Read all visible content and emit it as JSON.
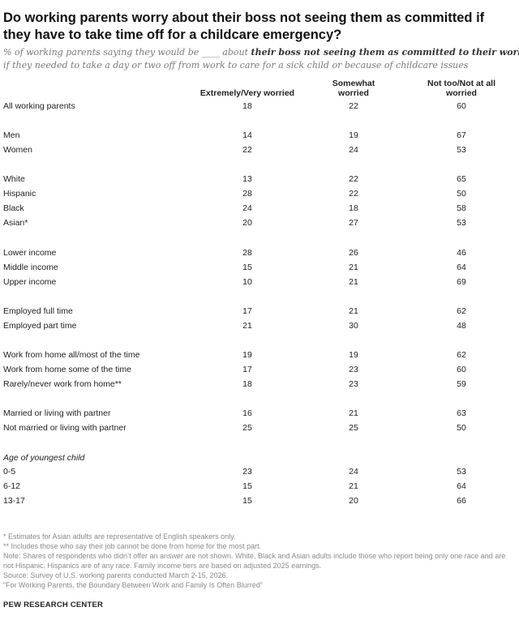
{
  "title": "Do working parents worry about their boss not seeing them as committed if they have to take time off for a childcare emergency?",
  "subtitle": {
    "prefix": "% of working parents saying they would be ____ about ",
    "bold": "their boss not seeing them as committed to their work",
    "suffix": "if they needed to take a day or two off from work to care for a sick child or because of childcare issues"
  },
  "columns": {
    "c1": "Extremely/Very worried",
    "c2": "Somewhat worried",
    "c3": "Not too/Not at all worried"
  },
  "rows": [
    {
      "label": "All working parents",
      "v1": "18",
      "v2": "22",
      "v3": "60"
    },
    {
      "label": "Men",
      "v1": "14",
      "v2": "19",
      "v3": "67"
    },
    {
      "label": "Women",
      "v1": "22",
      "v2": "24",
      "v3": "53"
    },
    {
      "label": "White",
      "v1": "13",
      "v2": "22",
      "v3": "65"
    },
    {
      "label": "Hispanic",
      "v1": "28",
      "v2": "22",
      "v3": "50"
    },
    {
      "label": "Black",
      "v1": "24",
      "v2": "18",
      "v3": "58"
    },
    {
      "label": "Asian*",
      "v1": "20",
      "v2": "27",
      "v3": "53"
    },
    {
      "label": "Lower income",
      "v1": "28",
      "v2": "26",
      "v3": "46"
    },
    {
      "label": "Middle income",
      "v1": "15",
      "v2": "21",
      "v3": "64"
    },
    {
      "label": "Upper income",
      "v1": "10",
      "v2": "21",
      "v3": "69"
    },
    {
      "label": "Employed full time",
      "v1": "17",
      "v2": "21",
      "v3": "62"
    },
    {
      "label": "Employed part time",
      "v1": "21",
      "v2": "30",
      "v3": "48"
    },
    {
      "label": "Work from home all/most of the time",
      "v1": "19",
      "v2": "19",
      "v3": "62"
    },
    {
      "label": "Work from home some of the time",
      "v1": "17",
      "v2": "23",
      "v3": "60"
    },
    {
      "label": "Rarely/never work from home**",
      "v1": "18",
      "v2": "23",
      "v3": "59"
    },
    {
      "label": "Married or living with partner",
      "v1": "16",
      "v2": "21",
      "v3": "63"
    },
    {
      "label": "Not married or living with partner",
      "v1": "25",
      "v2": "25",
      "v3": "50"
    },
    {
      "label": "0-5",
      "v1": "23",
      "v2": "24",
      "v3": "53"
    },
    {
      "label": "6-12",
      "v1": "15",
      "v2": "21",
      "v3": "64"
    },
    {
      "label": "13-17",
      "v1": "15",
      "v2": "20",
      "v3": "66"
    }
  ],
  "group_head": "Age of youngest child",
  "notes": [
    "* Estimates for Asian adults are representative of English speakers only.",
    "** Includes those who say their job cannot be done from home for the most part.",
    "Note: Shares of respondents who didn’t offer an answer are not shown. White, Black and Asian adults include those who report being only one race and are not Hispanic. Hispanics are of any race. Family income tiers are based on adjusted 2025 earnings.",
    "Source: Survey of U.S. working parents conducted March 2-15, 2026.",
    "“For Working Parents, the Boundary Between Work and Family Is Often Blurred”"
  ],
  "brand": "PEW RESEARCH CENTER"
}
